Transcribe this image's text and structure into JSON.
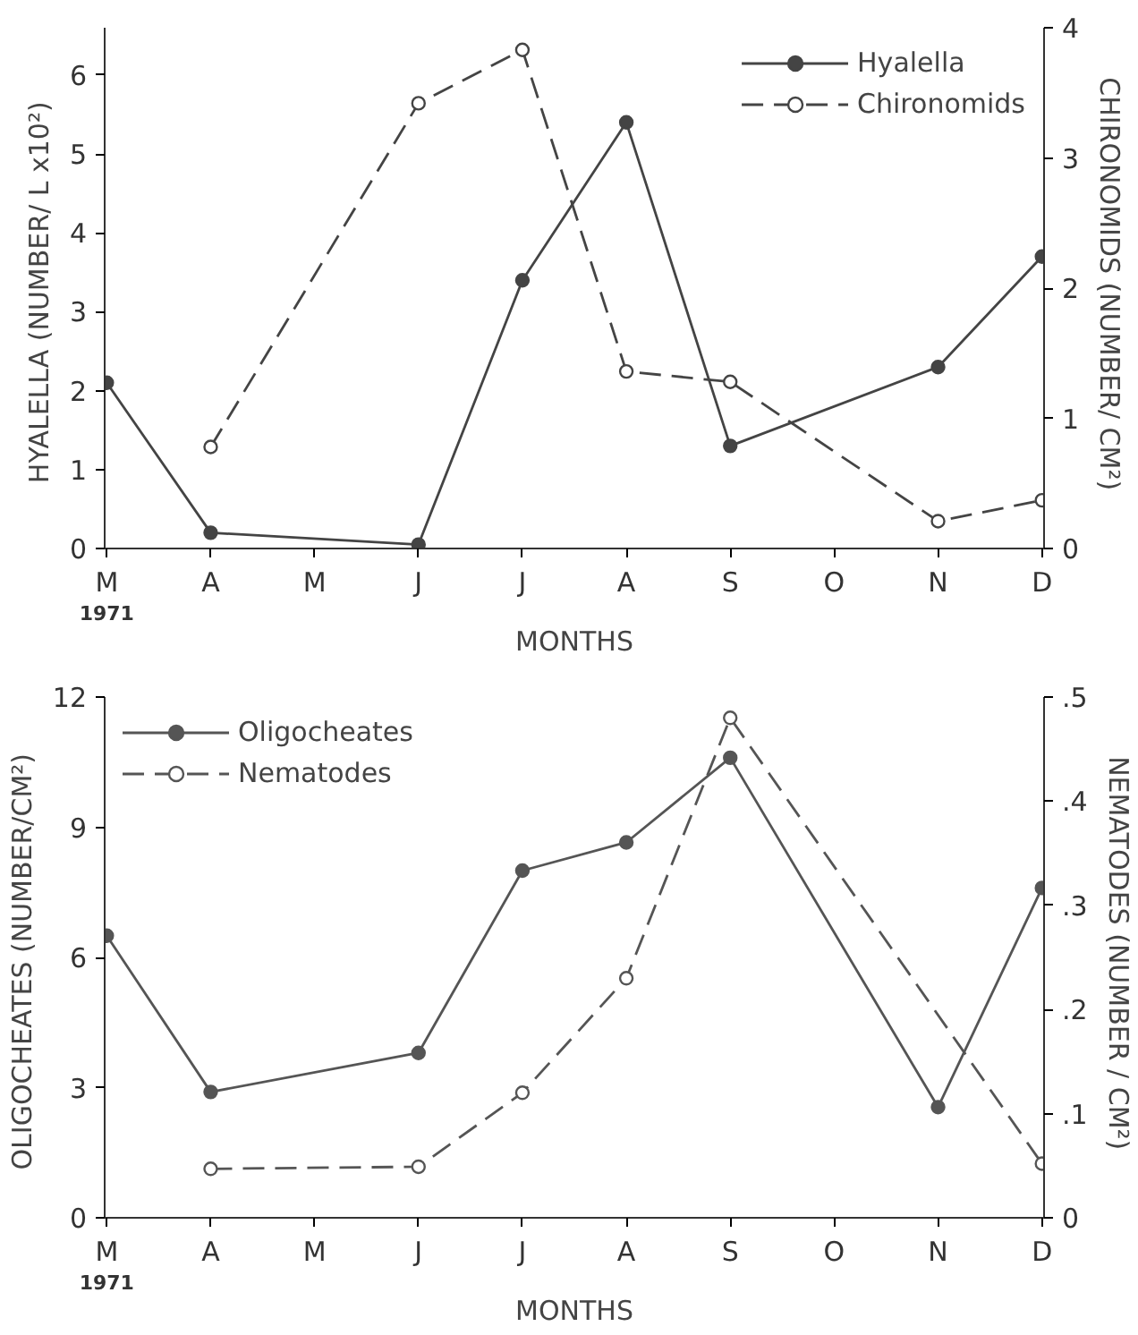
{
  "chart_data": [
    {
      "type": "line",
      "categories": [
        "M",
        "A",
        "M",
        "J",
        "J",
        "A",
        "S",
        "O",
        "N",
        "D"
      ],
      "xlabel": "MONTHS",
      "ylabel": "HYALELLA  (NUMBER/ L x10²)",
      "y2label": "CHIRONOMIDS  (NUMBER/ CM²)",
      "annotations": [
        "1971"
      ],
      "ylim": [
        0,
        6.6
      ],
      "yticks": [
        0,
        1,
        2,
        3,
        4,
        5,
        6
      ],
      "y2lim": [
        0,
        4
      ],
      "y2ticks": [
        0,
        1,
        2,
        3,
        4
      ],
      "grid": false,
      "legend": "top right",
      "marker": "circle",
      "series": [
        {
          "name": "Hyalella",
          "color": "#444444",
          "line_style": "solid",
          "values": [
            2.1,
            0.2,
            null,
            0.05,
            3.4,
            5.4,
            1.3,
            null,
            2.3,
            3.7
          ]
        },
        {
          "name": "Chironomids",
          "color": "#444444",
          "line_style": "dashed",
          "axis": "y2",
          "values": [
            null,
            0.78,
            null,
            3.42,
            3.83,
            1.36,
            1.28,
            null,
            0.21,
            0.37
          ]
        }
      ]
    },
    {
      "type": "line",
      "categories": [
        "M",
        "A",
        "M",
        "J",
        "J",
        "A",
        "S",
        "O",
        "N",
        "D"
      ],
      "xlabel": "MONTHS",
      "ylabel": "OLIGOCHEATES  (NUMBER/CM²)",
      "y2label": "NEMATODES  (NUMBER / CM²)",
      "annotations": [
        "1971"
      ],
      "ylim": [
        0,
        12
      ],
      "yticks": [
        0,
        3,
        6,
        9,
        12
      ],
      "y2lim": [
        0,
        0.5
      ],
      "y2ticks": [
        {
          "value": 0,
          "label": "0"
        },
        {
          "value": 0.1,
          "label": ".1"
        },
        {
          "value": 0.2,
          "label": ".2"
        },
        {
          "value": 0.3,
          "label": ".3"
        },
        {
          "value": 0.4,
          "label": ".4"
        },
        {
          "value": 0.5,
          "label": ".5"
        }
      ],
      "grid": false,
      "legend": "top left",
      "marker": "circle",
      "series": [
        {
          "name": "Oligocheates",
          "color": "#555555",
          "line_style": "solid",
          "values": [
            6.5,
            2.9,
            null,
            3.8,
            8.0,
            8.65,
            10.6,
            null,
            2.55,
            7.6
          ]
        },
        {
          "name": "Nematodes",
          "color": "#555555",
          "line_style": "dashed",
          "axis": "y2",
          "values": [
            null,
            0.047,
            null,
            0.049,
            0.12,
            0.23,
            0.48,
            null,
            null,
            0.052
          ]
        }
      ]
    }
  ]
}
